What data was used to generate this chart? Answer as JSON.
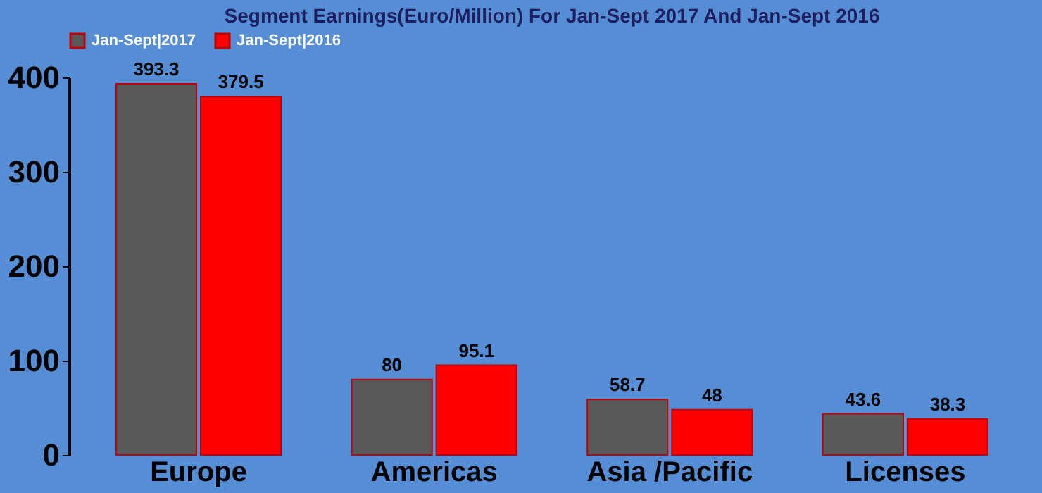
{
  "chart_data": {
    "type": "bar",
    "title": "Segment Earnings(Euro/Million) For Jan-Sept 2017 And Jan-Sept 2016",
    "categories": [
      "Europe",
      "Americas",
      "Asia /Pacific",
      "Licenses"
    ],
    "series": [
      {
        "name": "Jan-Sept|2017",
        "color": "#595959",
        "values": [
          393.3,
          80,
          58.7,
          43.6
        ]
      },
      {
        "name": "Jan-Sept|2016",
        "color": "#ff0000",
        "values": [
          379.5,
          95.1,
          48,
          38.3
        ]
      }
    ],
    "ylim": [
      0,
      400
    ],
    "yticks": [
      0,
      100,
      200,
      300,
      400
    ],
    "grid": false,
    "legend": "top",
    "data_labels": true
  }
}
